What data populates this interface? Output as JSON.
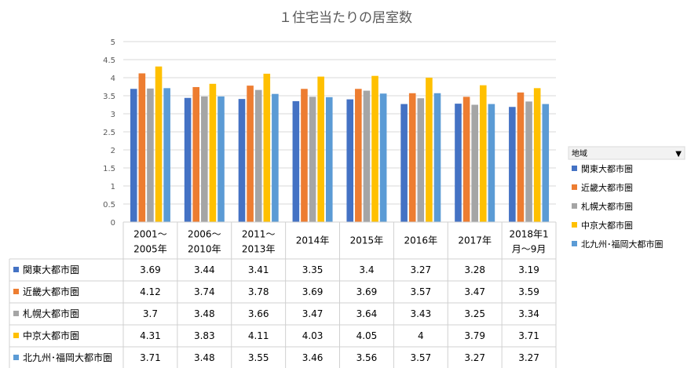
{
  "chart_data": {
    "type": "bar",
    "title": "１住宅当たりの居室数",
    "xlabel": "",
    "ylabel": "",
    "ylim": [
      0,
      5
    ],
    "yticks": [
      "0",
      "0.5",
      "1",
      "1.5",
      "2",
      "2.5",
      "3",
      "3.5",
      "4",
      "4.5",
      "5"
    ],
    "grid": true,
    "categories": [
      [
        "2001～",
        "2005年"
      ],
      [
        "2006～",
        "2010年"
      ],
      [
        "2011～",
        "2013年"
      ],
      [
        "2014年"
      ],
      [
        "2015年"
      ],
      [
        "2016年"
      ],
      [
        "2017年"
      ],
      [
        "2018年1",
        "月～9月"
      ]
    ],
    "series": [
      {
        "name": "関東大都市圏",
        "color": "#4472C4",
        "values": [
          3.69,
          3.44,
          3.41,
          3.35,
          3.4,
          3.27,
          3.28,
          3.19
        ]
      },
      {
        "name": "近畿大都市圏",
        "color": "#ED7D31",
        "values": [
          4.12,
          3.74,
          3.78,
          3.69,
          3.69,
          3.57,
          3.47,
          3.59
        ]
      },
      {
        "name": "札幌大都市圏",
        "color": "#A5A5A5",
        "values": [
          3.7,
          3.48,
          3.66,
          3.47,
          3.64,
          3.43,
          3.25,
          3.34
        ]
      },
      {
        "name": "中京大都市圏",
        "color": "#FFC000",
        "values": [
          4.31,
          3.83,
          4.11,
          4.03,
          4.05,
          4,
          3.79,
          3.71
        ]
      },
      {
        "name": "北九州･福岡大都市圏",
        "color": "#5B9BD5",
        "values": [
          3.71,
          3.48,
          3.55,
          3.46,
          3.56,
          3.57,
          3.27,
          3.27
        ]
      }
    ],
    "legend_position": "right",
    "legend_title": "地域",
    "legend_dropdown": "▼",
    "data_table": true
  }
}
